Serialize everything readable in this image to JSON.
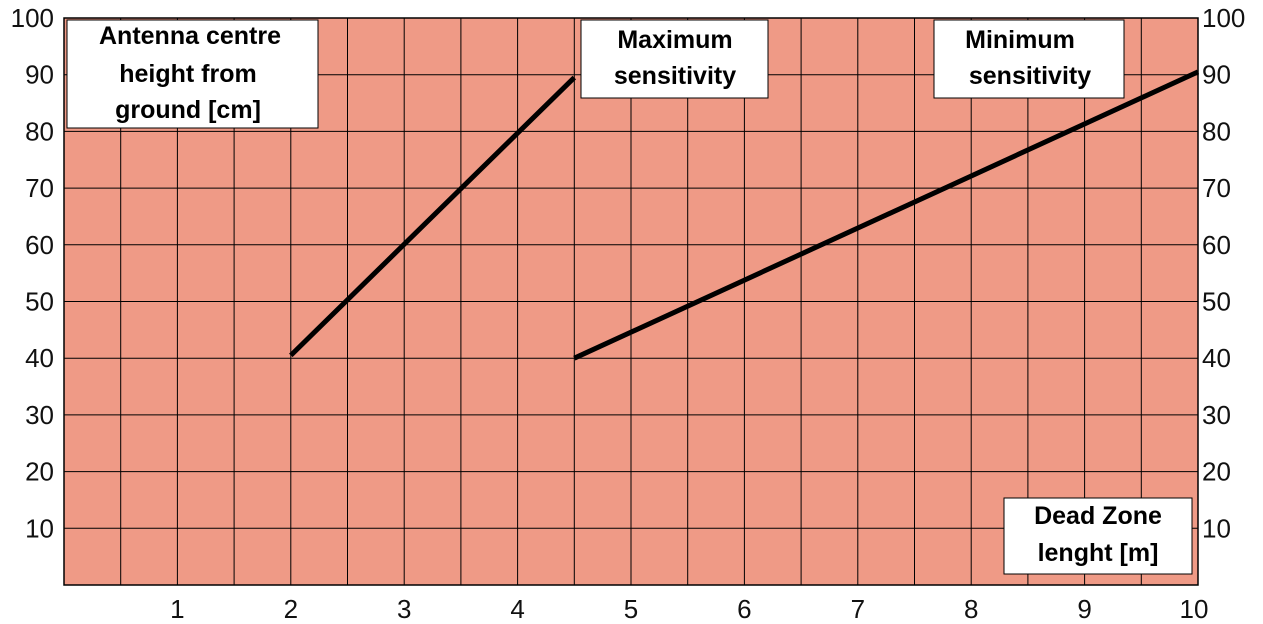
{
  "chart_data": {
    "type": "line",
    "ylabel_lines": [
      "Antenna centre",
      "height  from",
      "ground [cm]"
    ],
    "xlabel_lines": [
      "Dead Zone",
      "lenght [m]"
    ],
    "x_ticks": [
      1,
      2,
      3,
      4,
      5,
      6,
      7,
      8,
      9,
      10
    ],
    "y_ticks": [
      10,
      20,
      30,
      40,
      50,
      60,
      70,
      80,
      90,
      100
    ],
    "xlim": [
      0,
      10
    ],
    "ylim": [
      0,
      100
    ],
    "grid": true,
    "y_axis_both_sides": true,
    "background_color": "#ef9a86",
    "grid_color": "#000000",
    "series": [
      {
        "name_lines": [
          "Maximum",
          "sensitivity"
        ],
        "points": [
          [
            2.0,
            40.5
          ],
          [
            4.5,
            89.5
          ]
        ],
        "color": "#000000"
      },
      {
        "name_lines": [
          "Minimum",
          "sensitivity"
        ],
        "points": [
          [
            4.5,
            40.0
          ],
          [
            10.0,
            90.5
          ]
        ],
        "color": "#000000"
      }
    ]
  }
}
